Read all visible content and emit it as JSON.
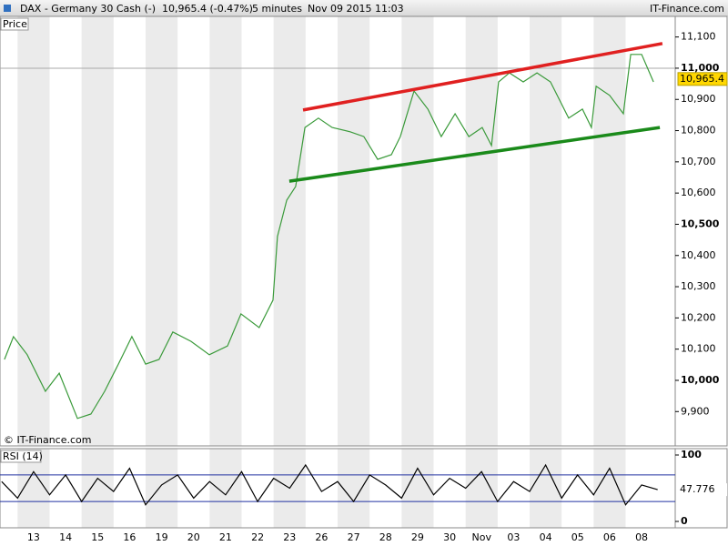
{
  "header": {
    "title": "DAX - Germany 30 Cash (-)",
    "quote": "10,965.4 (-0.47%)",
    "interval": "5 minutes",
    "timestamp": "Nov 09 2015 11:03",
    "brand": "IT-Finance.com"
  },
  "chart_data": [
    {
      "type": "line",
      "panel_label": "Price",
      "watermark": "© IT-Finance.com",
      "categories": [
        "13",
        "14",
        "15",
        "16",
        "19",
        "20",
        "21",
        "22",
        "23",
        "26",
        "27",
        "28",
        "29",
        "30",
        "Nov",
        "03",
        "04",
        "05",
        "06",
        "08"
      ],
      "xlim": [
        -1.05,
        20.05
      ],
      "ylim": [
        9790,
        11166
      ],
      "yticks": [
        {
          "value": 9900,
          "label": "9,900"
        },
        {
          "value": 10000,
          "label": "10,000"
        },
        {
          "value": 10100,
          "label": "10,100"
        },
        {
          "value": 10200,
          "label": "10,200"
        },
        {
          "value": 10300,
          "label": "10,300"
        },
        {
          "value": 10400,
          "label": "10,400"
        },
        {
          "value": 10500,
          "label": "10,500"
        },
        {
          "value": 10600,
          "label": "10,600"
        },
        {
          "value": 10700,
          "label": "10,700"
        },
        {
          "value": 10800,
          "label": "10,800"
        },
        {
          "value": 10900,
          "label": "10,900"
        },
        {
          "value": 11000,
          "label": "11,000"
        },
        {
          "value": 11100,
          "label": "11,100"
        }
      ],
      "bold_yticks": [
        10000,
        10500,
        11000
      ],
      "grid_levels": [
        11000
      ],
      "series": [
        {
          "name": "DAX",
          "color": "#3a9a3a",
          "x": [
            -0.91,
            -0.63,
            -0.2,
            0.37,
            0.8,
            1.37,
            1.79,
            2.22,
            2.65,
            3.07,
            3.5,
            3.92,
            4.35,
            4.92,
            5.49,
            6.06,
            6.48,
            7.05,
            7.48,
            7.62,
            7.91,
            8.19,
            8.48,
            8.9,
            9.33,
            9.9,
            10.32,
            10.75,
            11.18,
            11.46,
            11.89,
            12.32,
            12.74,
            13.17,
            13.6,
            14.02,
            14.31,
            14.53,
            14.87,
            15.3,
            15.73,
            16.15,
            16.72,
            17.15,
            17.43,
            17.58,
            18,
            18.43,
            18.66,
            19,
            19.37
          ],
          "values": [
            10067,
            10140,
            10082,
            9965,
            10023,
            9878,
            9892,
            9965,
            10052,
            10140,
            10052,
            10067,
            10155,
            10125,
            10082,
            10110,
            10213,
            10169,
            10257,
            10461,
            10577,
            10621,
            10810,
            10840,
            10810,
            10796,
            10781,
            10708,
            10723,
            10781,
            10927,
            10869,
            10781,
            10854,
            10781,
            10810,
            10752,
            10956,
            10985,
            10956,
            10985,
            10956,
            10840,
            10869,
            10810,
            10942,
            10913,
            10854,
            11044,
            11044,
            10956
          ]
        },
        {
          "name": "Resistance",
          "color": "#e02020",
          "x": [
            8.42,
            19.65
          ],
          "values": [
            10866,
            11079
          ]
        },
        {
          "name": "Support",
          "color": "#1a8a1a",
          "x": [
            7.99,
            19.57
          ],
          "values": [
            10638,
            10810
          ]
        }
      ],
      "last_price": {
        "value": 10965.4,
        "label": "10,965.4"
      }
    },
    {
      "type": "line",
      "panel_label": "RSI (14)",
      "xlim": [
        -1.05,
        20.05
      ],
      "ylim": [
        -9.6,
        109.6
      ],
      "yticks": [
        0,
        100
      ],
      "levels": [
        30,
        70
      ],
      "series": [
        {
          "name": "RSI",
          "color": "#000000",
          "x": [
            -1,
            -0.5,
            0,
            0.5,
            1,
            1.5,
            2,
            2.5,
            3,
            3.5,
            4,
            4.5,
            5,
            5.5,
            6,
            6.5,
            7,
            7.5,
            8,
            8.5,
            9,
            9.5,
            10,
            10.5,
            11,
            11.5,
            12,
            12.5,
            13,
            13.5,
            14,
            14.5,
            15,
            15.5,
            16,
            16.5,
            17,
            17.5,
            18,
            18.5,
            19,
            19.5
          ],
          "values": [
            60,
            35,
            75,
            40,
            70,
            30,
            65,
            45,
            80,
            25,
            55,
            70,
            35,
            60,
            40,
            75,
            30,
            65,
            50,
            85,
            45,
            60,
            30,
            70,
            55,
            35,
            80,
            40,
            65,
            50,
            75,
            30,
            60,
            45,
            85,
            35,
            70,
            40,
            80,
            25,
            55,
            47.776
          ]
        }
      ]
    }
  ]
}
